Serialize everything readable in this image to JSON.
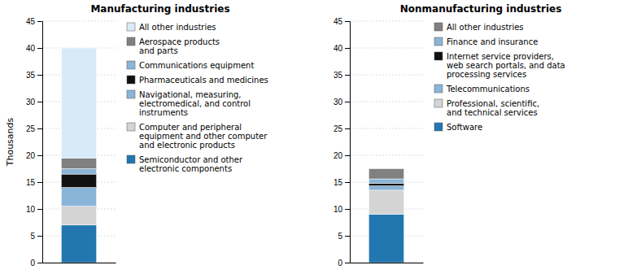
{
  "chart_data": [
    {
      "type": "bar",
      "stacked": true,
      "title": "Manufacturing industries",
      "ylabel": "Thousands",
      "categories": [
        null
      ],
      "ylim": [
        0,
        45
      ],
      "yticks": [
        0,
        5,
        10,
        15,
        20,
        25,
        30,
        35,
        40,
        45
      ],
      "grid": true,
      "legend": "right",
      "series": [
        {
          "name": "Semiconductor and other\nelectronic components",
          "color": "#2277b0",
          "values": [
            7.0
          ]
        },
        {
          "name": "Computer and peripheral\nequipment and other computer\nand electronic products",
          "color": "#d4d4d4",
          "values": [
            3.5
          ]
        },
        {
          "name": "Navigational, measuring,\nelectromedical, and control\ninstruments",
          "color": "#8ab4d8",
          "values": [
            3.5
          ]
        },
        {
          "name": "Pharmaceuticals and medicines",
          "color": "#111111",
          "values": [
            2.5
          ]
        },
        {
          "name": "Communications equipment",
          "color": "#8ab4d8",
          "values": [
            1.0
          ]
        },
        {
          "name": "Aerospace products\nand parts",
          "color": "#808080",
          "values": [
            2.0
          ]
        },
        {
          "name": "All other industries",
          "color": "#d8eaf8",
          "values": [
            20.5
          ]
        }
      ]
    },
    {
      "type": "bar",
      "stacked": true,
      "title": "Nonmanufacturing industries",
      "categories": [
        null
      ],
      "ylim": [
        0,
        45
      ],
      "yticks": [
        0,
        5,
        10,
        15,
        20,
        25,
        30,
        35,
        40,
        45
      ],
      "grid": true,
      "legend": "right",
      "series": [
        {
          "name": "Software",
          "color": "#2277b0",
          "values": [
            9.0
          ]
        },
        {
          "name": "Professional, scientific,\nand technical services",
          "color": "#d4d4d4",
          "values": [
            4.5
          ]
        },
        {
          "name": "Telecommunications",
          "color": "#8ab4d8",
          "values": [
            0.8
          ]
        },
        {
          "name": "Internet service providers,\nweb search portals, and data\nprocessing services",
          "color": "#111111",
          "values": [
            0.5
          ]
        },
        {
          "name": "Finance and insurance",
          "color": "#8ab4d8",
          "values": [
            0.8
          ]
        },
        {
          "name": "All other industries",
          "color": "#808080",
          "values": [
            1.9
          ]
        }
      ]
    }
  ]
}
